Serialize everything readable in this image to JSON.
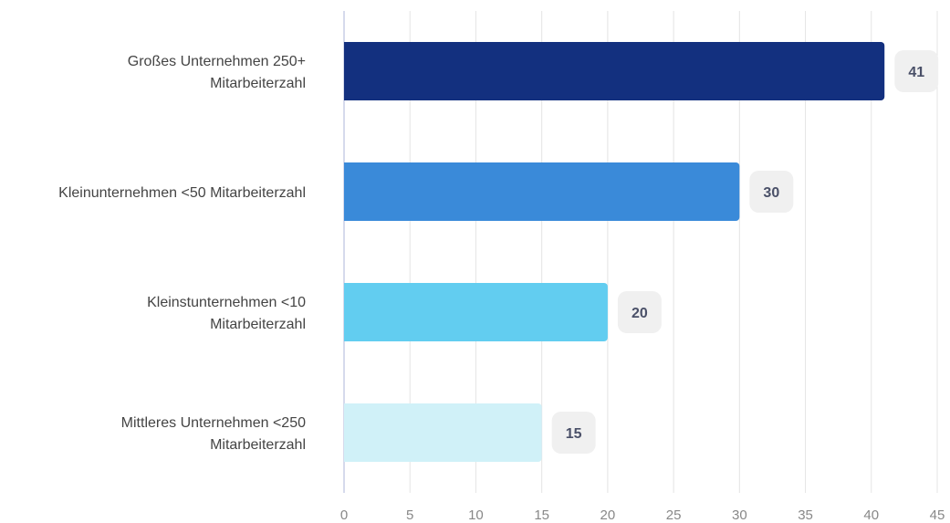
{
  "chart_data": {
    "type": "bar",
    "orientation": "horizontal",
    "categories": [
      [
        "Großes Unternehmen 250+",
        "Mitarbeiterzahl"
      ],
      [
        "Kleinunternehmen <50 Mitarbeiterzahl"
      ],
      [
        "Kleinstunternehmen <10",
        "Mitarbeiterzahl"
      ],
      [
        "Mittleres Unternehmen <250",
        "Mitarbeiterzahl"
      ]
    ],
    "values": [
      41,
      30,
      20,
      15
    ],
    "data_labels": [
      "41",
      "30",
      "20",
      "15"
    ],
    "colors": [
      "#13307f",
      "#3a8ad9",
      "#62cdf0",
      "#d0f1f8"
    ],
    "xlim": [
      0,
      45
    ],
    "xticks": [
      0,
      5,
      10,
      15,
      20,
      25,
      30,
      35,
      40,
      45
    ],
    "tick_labels": [
      "0",
      "5",
      "10",
      "15",
      "20",
      "25",
      "30",
      "35",
      "40",
      "45"
    ],
    "grid": true,
    "legend": "none",
    "title": "",
    "xlabel": "",
    "ylabel": ""
  }
}
